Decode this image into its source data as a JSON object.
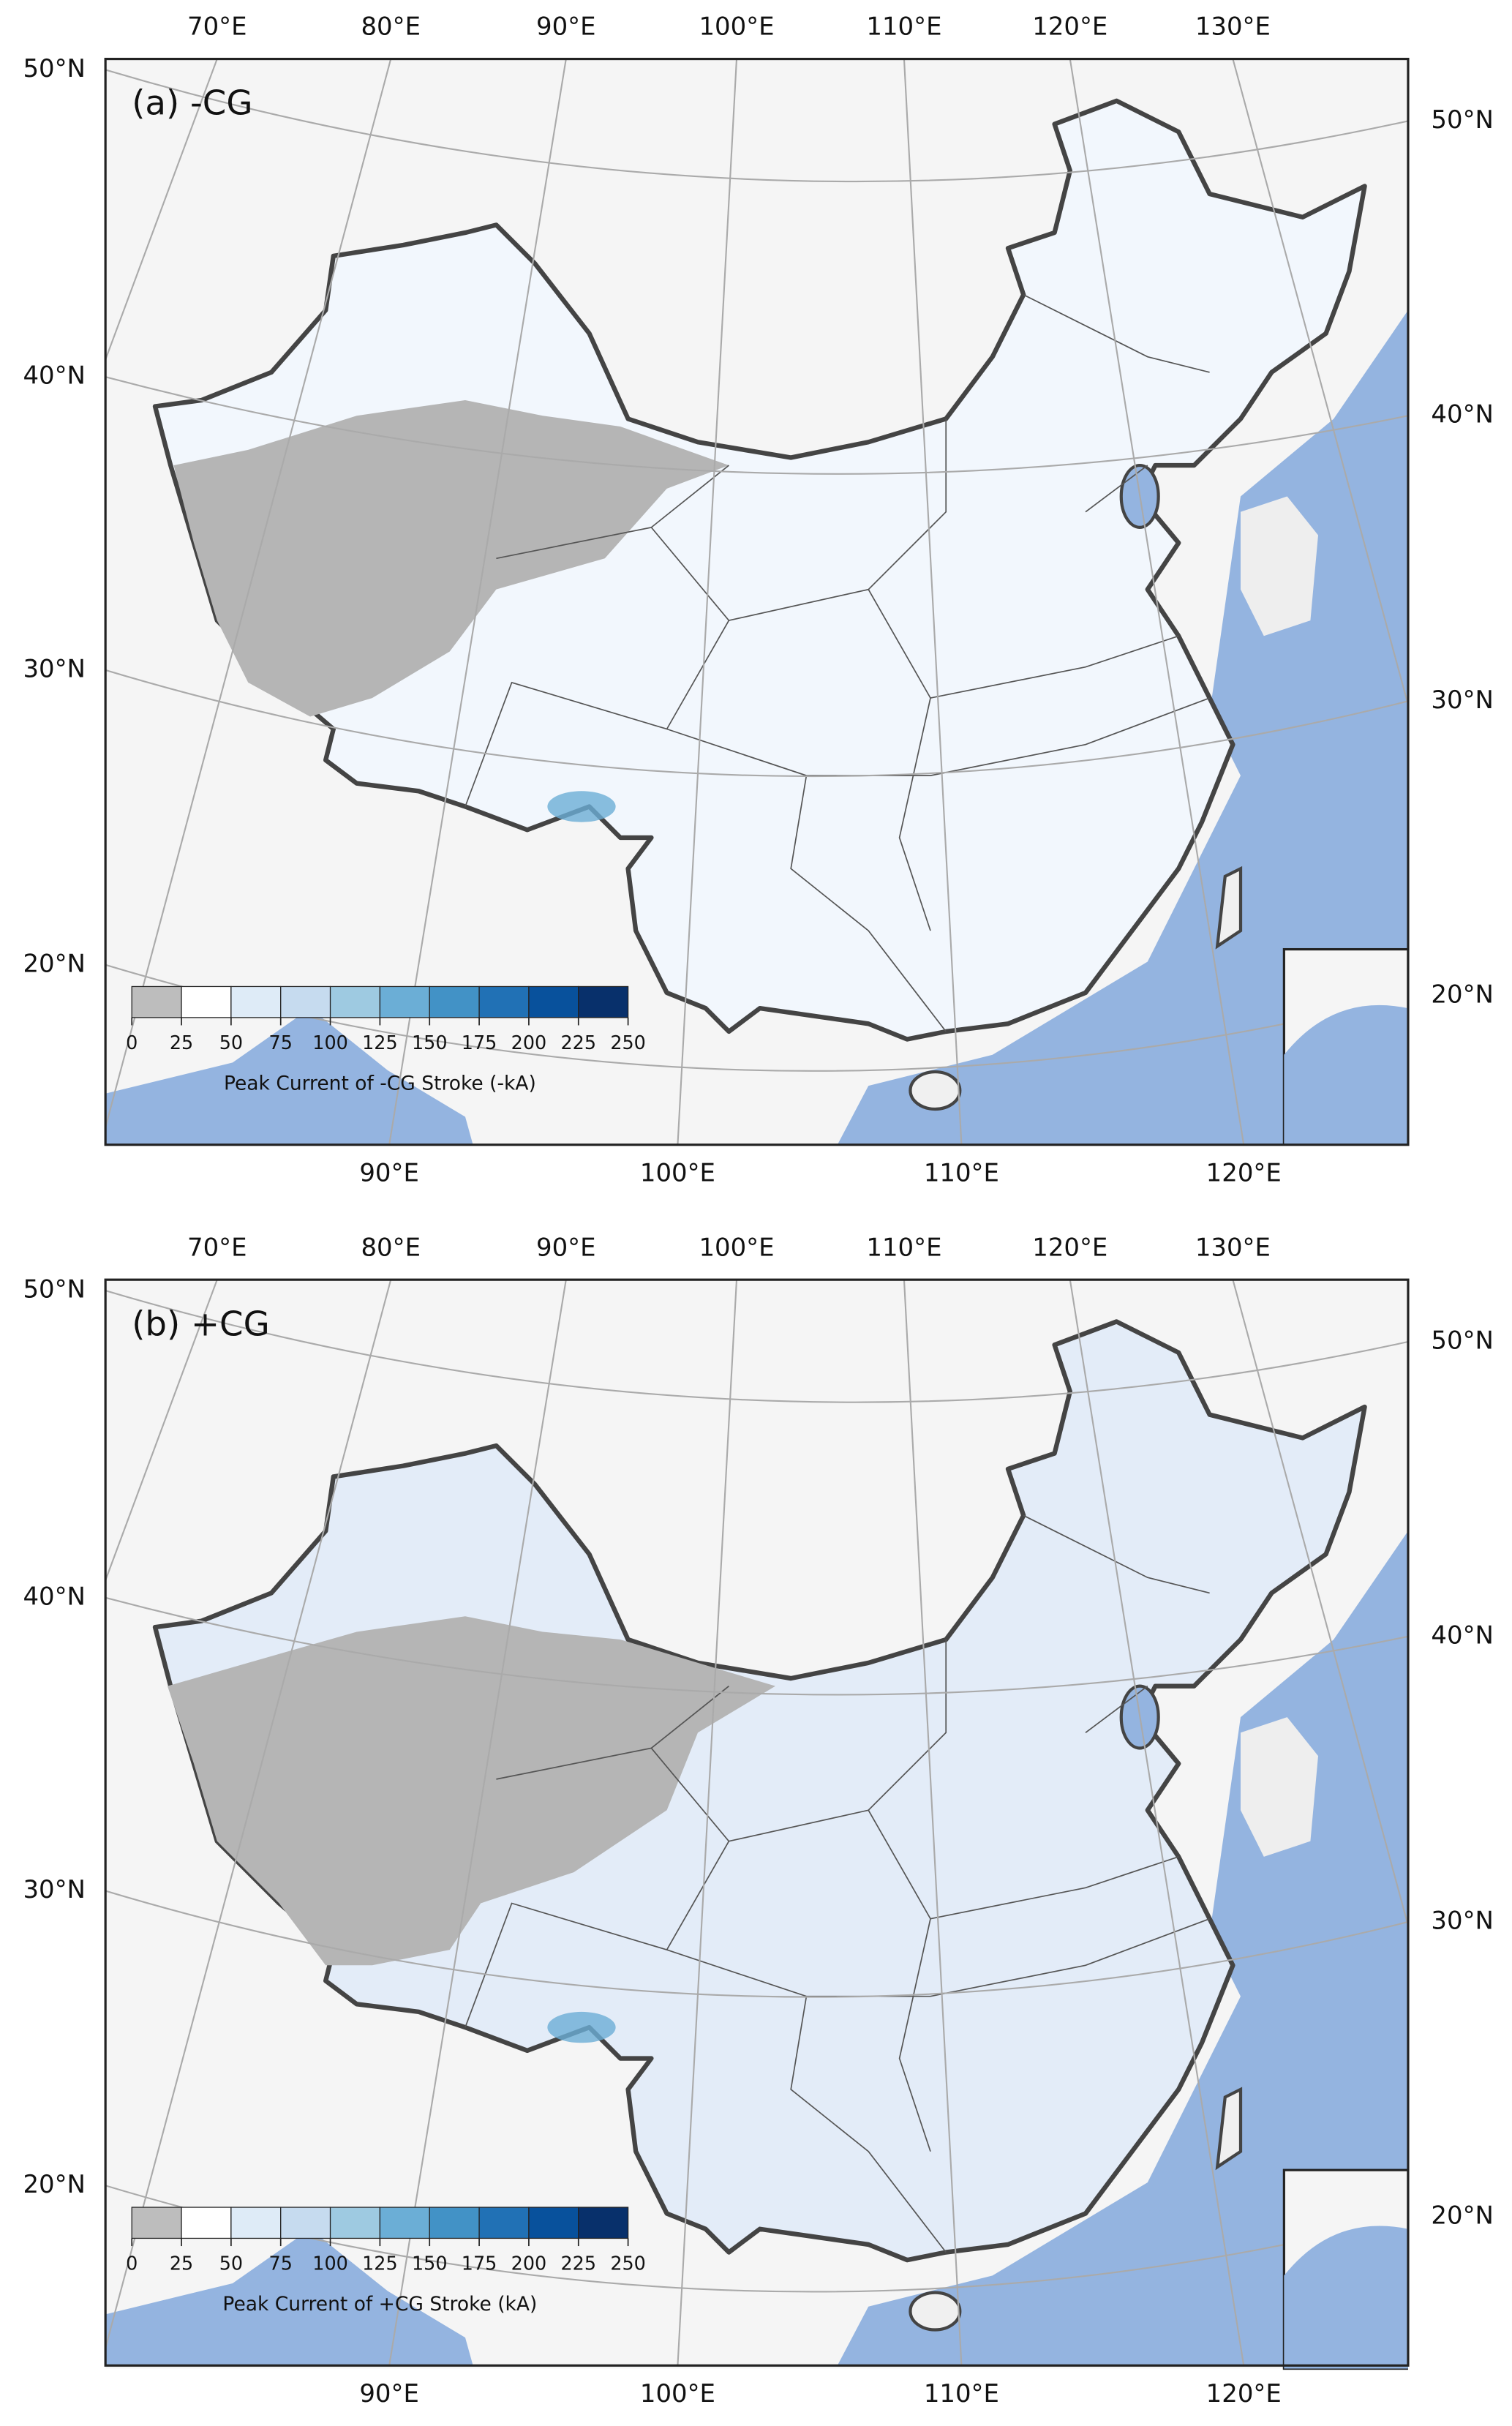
{
  "panels": [
    {
      "label": "(a) -CG",
      "top_lon_labels": [
        "70°E",
        "80°E",
        "90°E",
        "100°E",
        "110°E",
        "120°E",
        "130°E"
      ],
      "bottom_lon_labels": [
        "90°E",
        "100°E",
        "110°E",
        "120°E"
      ],
      "left_lat_labels": [
        "50°N",
        "40°N",
        "30°N",
        "20°N"
      ],
      "right_lat_labels": [
        "50°N",
        "40°N",
        "30°N",
        "20°N"
      ],
      "colorbar": {
        "label": "Peak Current of -CG Stroke (-kA)",
        "ticks": [
          0,
          25,
          50,
          75,
          100,
          125,
          150,
          175,
          200,
          225,
          250
        ],
        "colors": [
          "#bdbdbd",
          "#ffffff",
          "#deebf7",
          "#c6dbef",
          "#9ecae1",
          "#6baed6",
          "#4292c6",
          "#2171b5",
          "#08519c",
          "#08306b"
        ]
      }
    },
    {
      "label": "(b) +CG",
      "top_lon_labels": [
        "70°E",
        "80°E",
        "90°E",
        "100°E",
        "110°E",
        "120°E",
        "130°E"
      ],
      "bottom_lon_labels": [
        "90°E",
        "100°E",
        "110°E",
        "120°E"
      ],
      "left_lat_labels": [
        "50°N",
        "40°N",
        "30°N",
        "20°N"
      ],
      "right_lat_labels": [
        "50°N",
        "40°N",
        "30°N",
        "20°N"
      ],
      "colorbar": {
        "label": "Peak Current of +CG Stroke (kA)",
        "ticks": [
          0,
          25,
          50,
          75,
          100,
          125,
          150,
          175,
          200,
          225,
          250
        ],
        "colors": [
          "#bdbdbd",
          "#ffffff",
          "#deebf7",
          "#c6dbef",
          "#9ecae1",
          "#6baed6",
          "#4292c6",
          "#2171b5",
          "#08519c",
          "#08306b"
        ]
      }
    }
  ]
}
